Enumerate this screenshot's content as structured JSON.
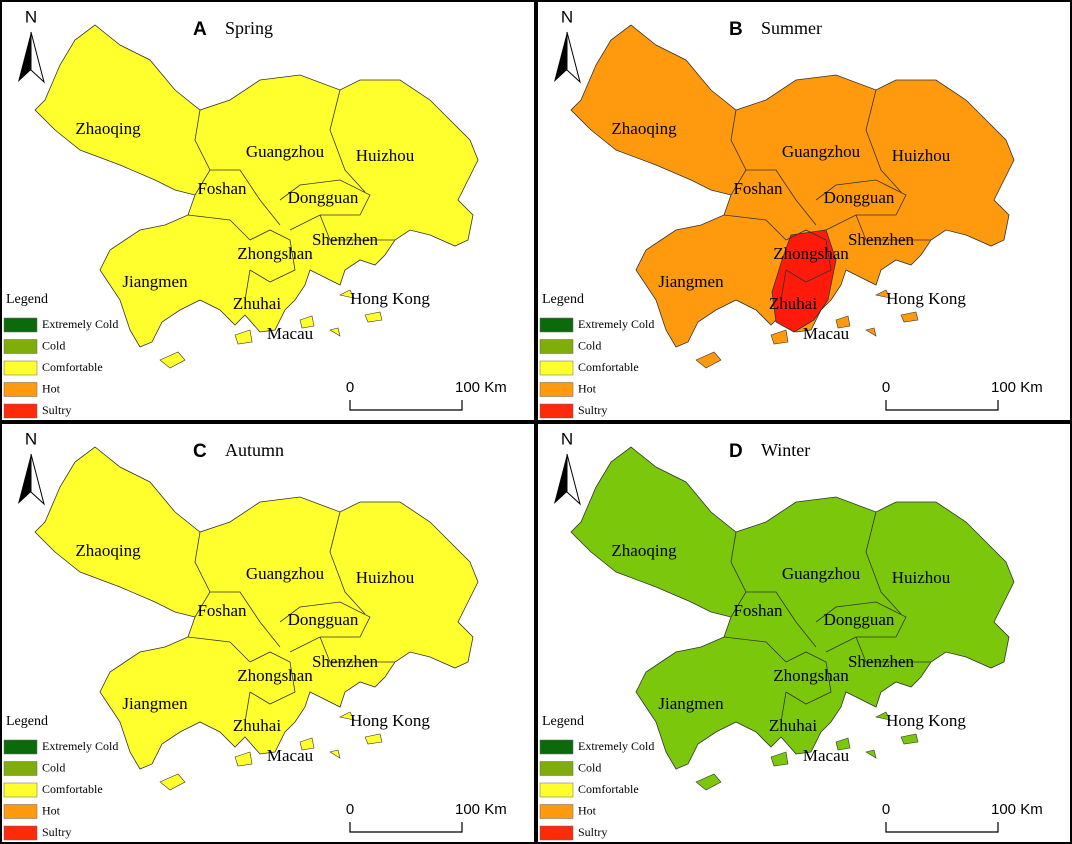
{
  "north": "N",
  "legend": {
    "title": "Legend",
    "items": [
      {
        "label": "Extremely Cold",
        "color": "#0b6b0b"
      },
      {
        "label": "Cold",
        "color": "#7fae0a"
      },
      {
        "label": "Comfortable",
        "color": "#ffff2e"
      },
      {
        "label": "Hot",
        "color": "#ff9a0e"
      },
      {
        "label": "Sultry",
        "color": "#ff2a0a"
      }
    ]
  },
  "scale": {
    "start": "0",
    "end": "100 Km"
  },
  "cities": [
    "Zhaoqing",
    "Guangzhou",
    "Huizhou",
    "Foshan",
    "Dongguan",
    "Shenzhen",
    "Zhongshan",
    "Jiangmen",
    "Zhuhai",
    "Hong Kong",
    "Macau"
  ],
  "panels": [
    {
      "letter": "A",
      "title": "Spring",
      "fill": "#ffff2e"
    },
    {
      "letter": "B",
      "title": "Summer",
      "fill": "#ff9a0e",
      "sultry_fill": "#ff1a0a"
    },
    {
      "letter": "C",
      "title": "Autumn",
      "fill": "#ffff2e"
    },
    {
      "letter": "D",
      "title": "Winter",
      "fill": "#7ac70c"
    }
  ]
}
